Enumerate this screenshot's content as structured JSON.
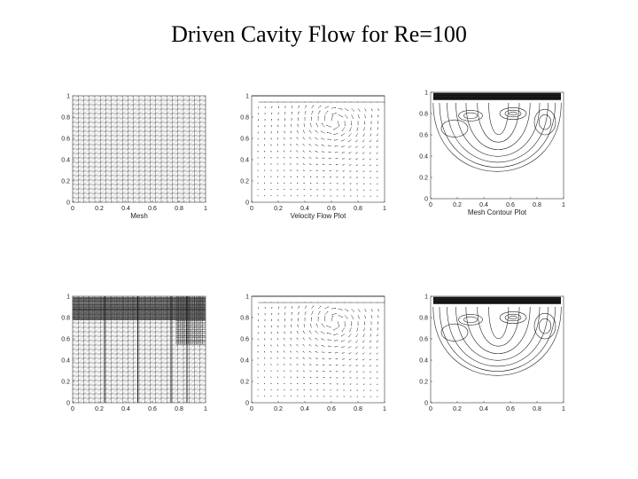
{
  "title": "Driven Cavity Flow for Re=100",
  "x_ticks": [
    "0",
    "0.2",
    "0.4",
    "0.6",
    "0.8",
    "1"
  ],
  "y_ticks": [
    "0",
    "0.2",
    "0.4",
    "0.6",
    "0.8",
    "1"
  ],
  "panels": [
    {
      "kind": "mesh",
      "xlabel": "Mesh"
    },
    {
      "kind": "vectors",
      "xlabel": "Velocity Flow Plot"
    },
    {
      "kind": "contours",
      "xlabel": "Mesh Contour Plot"
    },
    {
      "kind": "mesh-refined",
      "xlabel": ""
    },
    {
      "kind": "vectors",
      "xlabel": ""
    },
    {
      "kind": "contours",
      "xlabel": ""
    }
  ]
}
